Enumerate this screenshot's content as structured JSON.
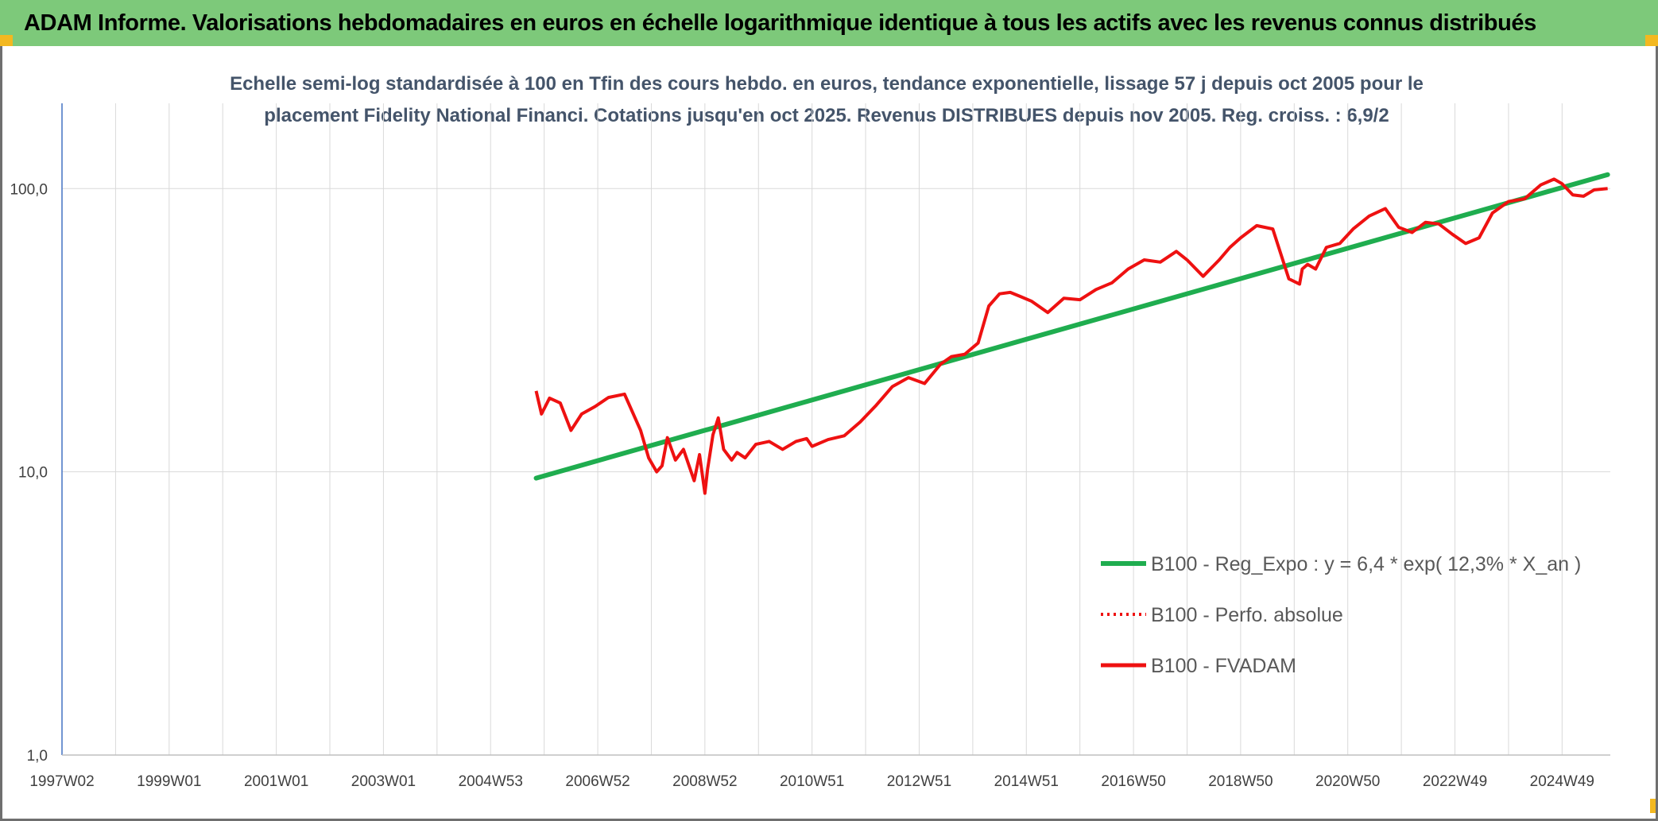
{
  "banner": {
    "title": "ADAM Informe. Valorisations hebdomadaires en euros en échelle logarithmique identique à tous les actifs avec les revenus connus distribués"
  },
  "colors": {
    "banner_bg": "#7dc97a",
    "corner_accent": "#f3b820",
    "trend": "#1fad4f",
    "series": "#ee1111",
    "grid": "#d9d9d9",
    "axis": "#4472c4"
  },
  "chart_data": {
    "type": "line",
    "title_line1": "Echelle semi-log standardisée à 100 en Tfin des cours hebdo. en euros, tendance exponentielle, lissage 57 j depuis oct 2005 pour le",
    "title_line2": "placement Fidelity National Financi. Cotations jusqu'en oct 2025. Revenus DISTRIBUES depuis nov 2005. Reg. croiss. : 6,9/2",
    "y_scale": "log",
    "ylim": [
      1,
      200
    ],
    "y_ticks": [
      {
        "value": 1,
        "label": "1,0"
      },
      {
        "value": 10,
        "label": "10,0"
      },
      {
        "value": 100,
        "label": "100,0"
      }
    ],
    "xlim": [
      1997.0,
      2025.9
    ],
    "x_ticks": [
      {
        "value": 1997.0,
        "label": "1997W02"
      },
      {
        "value": 1999.0,
        "label": "1999W01"
      },
      {
        "value": 2001.0,
        "label": "2001W01"
      },
      {
        "value": 2003.0,
        "label": "2003W01"
      },
      {
        "value": 2005.0,
        "label": "2004W53"
      },
      {
        "value": 2007.0,
        "label": "2006W52"
      },
      {
        "value": 2009.0,
        "label": "2008W52"
      },
      {
        "value": 2011.0,
        "label": "2010W51"
      },
      {
        "value": 2013.0,
        "label": "2012W51"
      },
      {
        "value": 2015.0,
        "label": "2014W51"
      },
      {
        "value": 2017.0,
        "label": "2016W50"
      },
      {
        "value": 2019.0,
        "label": "2018W50"
      },
      {
        "value": 2021.0,
        "label": "2020W50"
      },
      {
        "value": 2023.0,
        "label": "2022W49"
      },
      {
        "value": 2025.0,
        "label": "2024W49"
      }
    ],
    "grid_x_step_years": 1,
    "legend_position": "lower-right",
    "series": [
      {
        "name": "B100 - Reg_Expo : y = 6,4 * exp( 12,3% *  X_an )",
        "style": "solid-thick",
        "color": "#1fad4f",
        "x": [
          2005.85,
          2025.85
        ],
        "y": [
          9.5,
          112
        ]
      },
      {
        "name": "B100 - Perfo. absolue",
        "style": "dotted",
        "color": "#ee1111",
        "x": [],
        "y": []
      },
      {
        "name": "B100 - FVADAM",
        "style": "solid",
        "color": "#ee1111",
        "x": [
          2005.85,
          2005.95,
          2006.1,
          2006.3,
          2006.5,
          2006.7,
          2006.95,
          2007.2,
          2007.5,
          2007.8,
          2007.95,
          2008.1,
          2008.2,
          2008.3,
          2008.45,
          2008.6,
          2008.8,
          2008.9,
          2009.0,
          2009.05,
          2009.15,
          2009.25,
          2009.35,
          2009.5,
          2009.6,
          2009.75,
          2009.95,
          2010.2,
          2010.45,
          2010.7,
          2010.9,
          2011.0,
          2011.3,
          2011.6,
          2011.9,
          2012.2,
          2012.5,
          2012.8,
          2013.1,
          2013.4,
          2013.6,
          2013.85,
          2014.1,
          2014.3,
          2014.5,
          2014.7,
          2014.9,
          2015.1,
          2015.4,
          2015.7,
          2016.0,
          2016.3,
          2016.6,
          2016.9,
          2017.2,
          2017.5,
          2017.8,
          2018.0,
          2018.3,
          2018.6,
          2018.8,
          2019.0,
          2019.3,
          2019.6,
          2019.9,
          2020.1,
          2020.15,
          2020.25,
          2020.4,
          2020.6,
          2020.85,
          2021.1,
          2021.4,
          2021.7,
          2021.95,
          2022.2,
          2022.45,
          2022.7,
          2022.95,
          2023.2,
          2023.45,
          2023.7,
          2024.0,
          2024.3,
          2024.6,
          2024.85,
          2025.0,
          2025.2,
          2025.4,
          2025.6,
          2025.85
        ],
        "y": [
          19.3,
          16.0,
          18.2,
          17.5,
          14.0,
          16.0,
          17.0,
          18.3,
          18.8,
          14.0,
          11.2,
          10.0,
          10.5,
          13.2,
          11.0,
          12.0,
          9.3,
          11.5,
          8.4,
          10.2,
          13.5,
          15.5,
          12.0,
          11.0,
          11.7,
          11.2,
          12.5,
          12.8,
          12.0,
          12.8,
          13.1,
          12.3,
          13.0,
          13.4,
          15.0,
          17.2,
          20.0,
          21.5,
          20.5,
          24.0,
          25.5,
          26.0,
          28.5,
          38.5,
          42.5,
          43.0,
          41.5,
          40.0,
          36.5,
          41.0,
          40.5,
          44.0,
          46.5,
          52.0,
          56.0,
          55.0,
          60.0,
          56.0,
          49.0,
          56.0,
          62.0,
          67.0,
          74.0,
          72.0,
          48.0,
          46.0,
          52.0,
          54.0,
          52.0,
          62.0,
          64.0,
          72.0,
          80.0,
          85.0,
          73.0,
          70.0,
          76.0,
          75.0,
          69.0,
          64.0,
          67.0,
          82.0,
          90.0,
          92.0,
          103.0,
          108.0,
          104.0,
          95.0,
          94.0,
          99.0,
          100.0
        ]
      }
    ]
  }
}
